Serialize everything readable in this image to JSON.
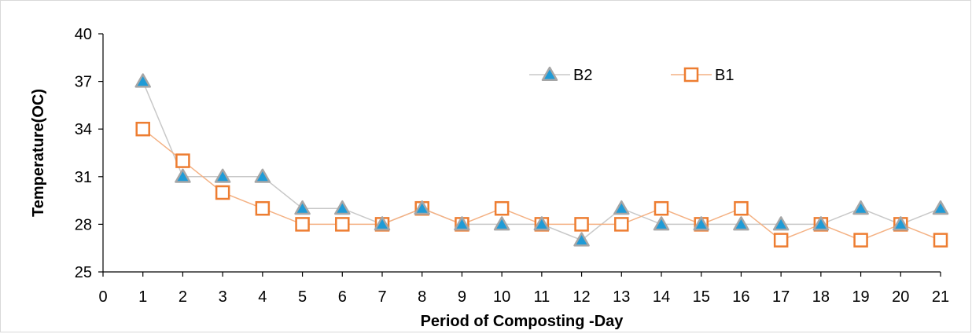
{
  "chart_data": {
    "type": "line",
    "title": "",
    "xlabel": "Period of Composting -Day",
    "ylabel": "Temperature(OC)",
    "xlim": [
      0,
      21
    ],
    "ylim": [
      25,
      40
    ],
    "xticks": [
      0,
      1,
      2,
      3,
      4,
      5,
      6,
      7,
      8,
      9,
      10,
      11,
      12,
      13,
      14,
      15,
      16,
      17,
      18,
      19,
      20,
      21
    ],
    "yticks": [
      25,
      28,
      31,
      34,
      37,
      40
    ],
    "grid": false,
    "legend_position": "top-right",
    "x": [
      1,
      2,
      3,
      4,
      5,
      6,
      7,
      8,
      9,
      10,
      11,
      12,
      13,
      14,
      15,
      16,
      17,
      18,
      19,
      20,
      21
    ],
    "series": [
      {
        "name": "B2",
        "marker": "triangle",
        "line_color": "#c8c8c8",
        "marker_fill": "#1f9bd7",
        "marker_edge": "#a6a6a6",
        "values": [
          37,
          31,
          31,
          31,
          29,
          29,
          28,
          29,
          28,
          28,
          28,
          27,
          29,
          28,
          28,
          28,
          28,
          28,
          29,
          28,
          29
        ]
      },
      {
        "name": "B1",
        "marker": "square",
        "line_color": "#f4b183",
        "marker_fill": "#ffffff",
        "marker_edge": "#ed7d31",
        "values": [
          34,
          32,
          30,
          29,
          28,
          28,
          28,
          29,
          28,
          29,
          28,
          28,
          28,
          29,
          28,
          29,
          27,
          28,
          27,
          28,
          27
        ]
      }
    ]
  }
}
